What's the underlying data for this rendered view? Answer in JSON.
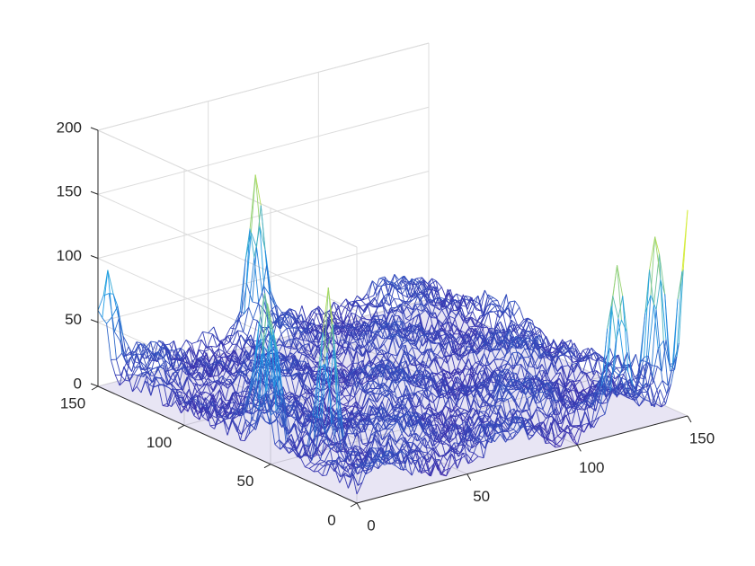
{
  "chart_data": {
    "type": "surface-mesh",
    "colormap": "parula",
    "colors": {
      "low": "#3e26a8",
      "mid": "#1ea0e8",
      "high": "#f9fb15",
      "axis": "#262626",
      "grid": "#dcdcdc"
    },
    "grid": true,
    "x": {
      "range": [
        0,
        150
      ],
      "ticks": [
        0,
        50,
        100,
        150
      ],
      "tick_labels": [
        "0",
        "50",
        "100",
        "150"
      ]
    },
    "y": {
      "range": [
        0,
        150
      ],
      "ticks": [
        0,
        50,
        100,
        150
      ],
      "tick_labels": [
        "0",
        "50",
        "100",
        "150"
      ]
    },
    "z": {
      "range": [
        0,
        200
      ],
      "ticks": [
        0,
        50,
        100,
        150,
        200
      ],
      "tick_labels": [
        "0",
        "50",
        "100",
        "150",
        "200"
      ]
    },
    "baseline_level": 20,
    "peaks": [
      {
        "x": 3,
        "y": 148,
        "z": 75
      },
      {
        "x": 15,
        "y": 72,
        "z": 90
      },
      {
        "x": 3,
        "y": 55,
        "z": 110
      },
      {
        "x": 12,
        "y": 32,
        "z": 130
      },
      {
        "x": 145,
        "y": 12,
        "z": 125
      },
      {
        "x": 150,
        "y": 0,
        "z": 145
      },
      {
        "x": 120,
        "y": 3,
        "z": 115
      },
      {
        "x": 68,
        "y": 145,
        "z": 110
      }
    ],
    "xlabel": "",
    "ylabel": "",
    "zlabel": "",
    "title": ""
  }
}
